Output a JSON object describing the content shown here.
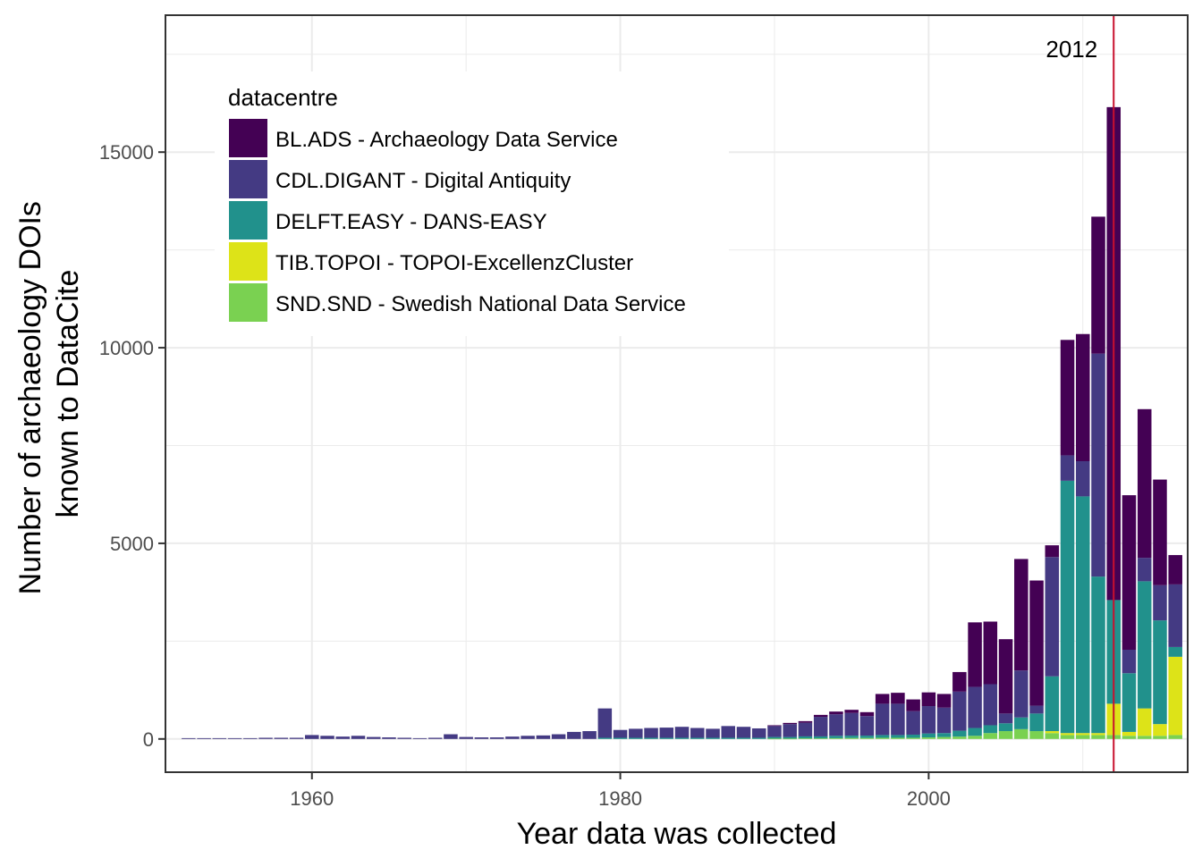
{
  "chart_data": {
    "type": "bar",
    "stacked": true,
    "title": "",
    "xlabel": "Year data was collected",
    "ylabel_lines": [
      "Number of archaeology DOIs",
      "known to DataCite"
    ],
    "xlim": [
      1950.5,
      2016.8
    ],
    "ylim": [
      -850,
      18500
    ],
    "x_ticks": [
      1960,
      1980,
      2000
    ],
    "y_ticks": [
      0,
      5000,
      10000,
      15000
    ],
    "grid": true,
    "legend_position": "top-left",
    "legend_title": "datacentre",
    "annotation": {
      "x": 2012,
      "label": "2012",
      "color": "#c8102e"
    },
    "x": [
      1952,
      1953,
      1954,
      1955,
      1956,
      1957,
      1958,
      1959,
      1960,
      1961,
      1962,
      1963,
      1964,
      1965,
      1966,
      1967,
      1968,
      1969,
      1970,
      1971,
      1972,
      1973,
      1974,
      1975,
      1976,
      1977,
      1978,
      1979,
      1980,
      1981,
      1982,
      1983,
      1984,
      1985,
      1986,
      1987,
      1988,
      1989,
      1990,
      1991,
      1992,
      1993,
      1994,
      1995,
      1996,
      1997,
      1998,
      1999,
      2000,
      2001,
      2002,
      2003,
      2004,
      2005,
      2006,
      2007,
      2008,
      2009,
      2010,
      2011,
      2012,
      2013,
      2014,
      2015,
      2016
    ],
    "series": [
      {
        "name": "SND.SND - Swedish National Data Service",
        "color": "#7ad151",
        "values": [
          0,
          0,
          0,
          0,
          0,
          0,
          0,
          0,
          0,
          0,
          0,
          0,
          0,
          0,
          0,
          0,
          0,
          0,
          0,
          0,
          0,
          0,
          0,
          0,
          0,
          0,
          0,
          0,
          0,
          0,
          0,
          0,
          0,
          0,
          0,
          0,
          0,
          0,
          10,
          10,
          15,
          15,
          20,
          25,
          25,
          30,
          30,
          30,
          40,
          50,
          60,
          80,
          150,
          200,
          250,
          200,
          150,
          100,
          100,
          100,
          100,
          80,
          80,
          80,
          100
        ]
      },
      {
        "name": "TIB.TOPOI - TOPOI-ExcellenzCluster",
        "color": "#dde318",
        "values": [
          0,
          0,
          0,
          0,
          0,
          0,
          0,
          0,
          0,
          0,
          0,
          0,
          0,
          0,
          0,
          0,
          0,
          0,
          0,
          0,
          0,
          0,
          0,
          0,
          0,
          0,
          0,
          0,
          0,
          0,
          0,
          0,
          0,
          0,
          0,
          0,
          0,
          0,
          0,
          0,
          0,
          0,
          0,
          0,
          0,
          0,
          0,
          0,
          0,
          0,
          0,
          0,
          0,
          0,
          0,
          0,
          50,
          50,
          50,
          50,
          800,
          100,
          700,
          300,
          2000
        ]
      },
      {
        "name": "DELFT.EASY - DANS-EASY",
        "color": "#21918c",
        "values": [
          0,
          0,
          0,
          0,
          0,
          0,
          0,
          0,
          0,
          0,
          0,
          0,
          0,
          0,
          0,
          0,
          0,
          0,
          0,
          0,
          0,
          0,
          0,
          0,
          0,
          0,
          0,
          30,
          30,
          30,
          30,
          30,
          30,
          30,
          30,
          30,
          30,
          30,
          40,
          40,
          50,
          50,
          60,
          60,
          60,
          70,
          70,
          80,
          100,
          100,
          150,
          200,
          200,
          200,
          300,
          450,
          1400,
          6450,
          6050,
          4000,
          2650,
          1500,
          3250,
          2650,
          250
        ]
      },
      {
        "name": "CDL.DIGANT - Digital Antiquity",
        "color": "#443a83",
        "values": [
          20,
          20,
          20,
          20,
          20,
          30,
          30,
          30,
          100,
          80,
          60,
          80,
          50,
          40,
          30,
          20,
          30,
          120,
          50,
          40,
          40,
          60,
          80,
          90,
          120,
          180,
          200,
          750,
          200,
          230,
          250,
          260,
          280,
          250,
          230,
          300,
          280,
          240,
          280,
          330,
          350,
          500,
          550,
          580,
          500,
          800,
          800,
          600,
          700,
          650,
          1000,
          1050,
          1050,
          250,
          1200,
          200,
          3050,
          650,
          900,
          5700,
          0,
          600,
          600,
          900,
          1600
        ]
      },
      {
        "name": "BL.ADS - Archaeology Data Service",
        "color": "#440154",
        "values": [
          0,
          0,
          0,
          0,
          0,
          0,
          0,
          0,
          0,
          0,
          0,
          0,
          0,
          0,
          0,
          0,
          0,
          0,
          0,
          0,
          0,
          0,
          0,
          0,
          0,
          0,
          0,
          0,
          0,
          0,
          0,
          0,
          0,
          0,
          0,
          0,
          0,
          0,
          20,
          30,
          40,
          50,
          70,
          80,
          100,
          250,
          280,
          300,
          350,
          350,
          500,
          1650,
          1600,
          1900,
          2850,
          3200,
          300,
          2950,
          3250,
          3500,
          12600,
          3950,
          3800,
          2700,
          750
        ]
      }
    ],
    "legend_order": [
      "BL.ADS - Archaeology Data Service",
      "CDL.DIGANT - Digital Antiquity",
      "DELFT.EASY - DANS-EASY",
      "TIB.TOPOI - TOPOI-ExcellenzCluster",
      "SND.SND - Swedish National Data Service"
    ]
  }
}
